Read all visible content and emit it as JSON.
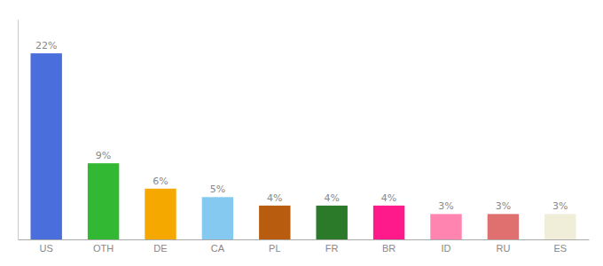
{
  "chart_data": {
    "type": "bar",
    "categories": [
      "US",
      "OTH",
      "DE",
      "CA",
      "PL",
      "FR",
      "BR",
      "ID",
      "RU",
      "ES"
    ],
    "values": [
      22,
      9,
      6,
      5,
      4,
      4,
      4,
      3,
      3,
      3
    ],
    "value_labels": [
      "22%",
      "9%",
      "6%",
      "5%",
      "4%",
      "4%",
      "4%",
      "3%",
      "3%",
      "3%"
    ],
    "colors": [
      "#4a6fdc",
      "#32b832",
      "#f5a800",
      "#85c8f0",
      "#b85c10",
      "#2a7a2a",
      "#ff1a8c",
      "#ff85b0",
      "#e07070",
      "#f0edd8"
    ],
    "ylim": [
      0,
      26
    ],
    "data_labels": true,
    "tick_labels": "x",
    "grid": false
  }
}
